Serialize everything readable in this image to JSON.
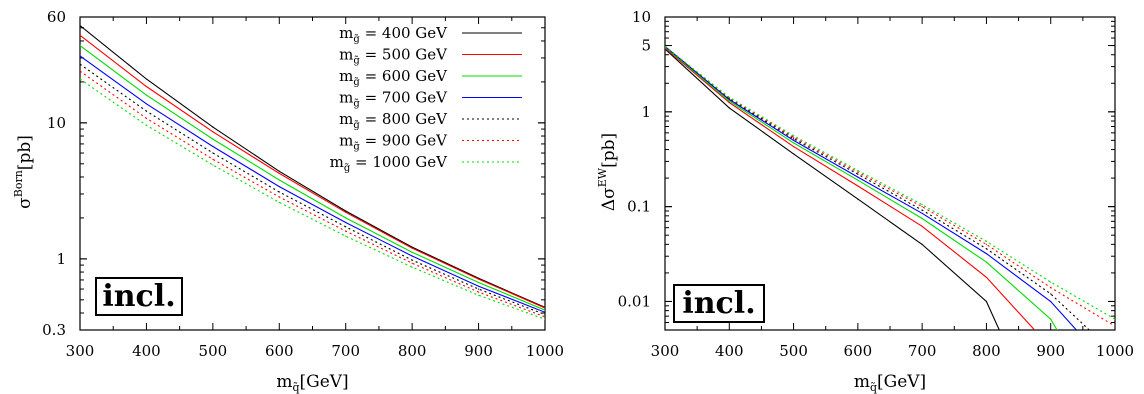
{
  "chart_data": [
    {
      "type": "line",
      "y_scale": "log",
      "xlabel": {
        "main": "m",
        "sub": "q̃",
        "unit": "[GeV]"
      },
      "ylabel": {
        "main": "σ",
        "sup": "Born",
        "unit": "[pb]"
      },
      "xlim": [
        300,
        1000
      ],
      "ylim": [
        0.3,
        60
      ],
      "x_ticks": [
        300,
        400,
        500,
        600,
        700,
        800,
        900,
        1000
      ],
      "y_ticks": [
        {
          "value": 0.3,
          "label": "0.3"
        },
        {
          "value": 1,
          "label": "1"
        },
        {
          "value": 10,
          "label": "10"
        },
        {
          "value": 60,
          "label": "60"
        }
      ],
      "annotation": "incl.",
      "legend_position": "top-right",
      "x": [
        300,
        400,
        500,
        600,
        700,
        800,
        900,
        1000
      ],
      "series": [
        {
          "name": "m_g̃ = 400 GeV",
          "color": "#000000",
          "dash": "solid",
          "values": [
            52,
            21,
            9.3,
            4.4,
            2.25,
            1.22,
            0.72,
            0.44
          ]
        },
        {
          "name": "m_g̃ = 500 GeV",
          "color": "#ff0000",
          "dash": "solid",
          "values": [
            44,
            18.5,
            8.6,
            4.25,
            2.2,
            1.2,
            0.71,
            0.435
          ]
        },
        {
          "name": "m_g̃ = 600 GeV",
          "color": "#00dd00",
          "dash": "solid",
          "values": [
            37,
            16,
            7.6,
            3.8,
            2.0,
            1.12,
            0.67,
            0.42
          ]
        },
        {
          "name": "m_g̃ = 700 GeV",
          "color": "#0000ff",
          "dash": "solid",
          "values": [
            31,
            13.8,
            6.7,
            3.4,
            1.85,
            1.05,
            0.63,
            0.405
          ]
        },
        {
          "name": "m_g̃ = 800 GeV",
          "color": "#000000",
          "dash": "dotted",
          "values": [
            27,
            12.2,
            6.0,
            3.1,
            1.72,
            0.98,
            0.6,
            0.39
          ]
        },
        {
          "name": "m_g̃ = 900 GeV",
          "color": "#ff0000",
          "dash": "dotted",
          "values": [
            24,
            10.8,
            5.4,
            2.85,
            1.6,
            0.93,
            0.57,
            0.375
          ]
        },
        {
          "name": "m_g̃ = 1000 GeV",
          "color": "#00dd00",
          "dash": "dotted",
          "values": [
            21,
            9.6,
            4.9,
            2.6,
            1.47,
            0.87,
            0.54,
            0.36
          ]
        }
      ]
    },
    {
      "type": "line",
      "y_scale": "log",
      "xlabel": {
        "main": "m",
        "sub": "q̃",
        "unit": "[GeV]"
      },
      "ylabel": {
        "main": "Δσ",
        "sup": "EW",
        "unit": "[pb]"
      },
      "xlim": [
        300,
        1000
      ],
      "ylim": [
        0.005,
        10
      ],
      "x_ticks": [
        300,
        400,
        500,
        600,
        700,
        800,
        900,
        1000
      ],
      "y_ticks": [
        {
          "value": 0.01,
          "label": "0.01"
        },
        {
          "value": 0.1,
          "label": "0.1"
        },
        {
          "value": 1,
          "label": "1"
        },
        {
          "value": 5,
          "label": "5"
        },
        {
          "value": 10,
          "label": "10"
        }
      ],
      "annotation": "incl.",
      "series": [
        {
          "name": "m_g̃ = 400 GeV",
          "color": "#000000",
          "dash": "solid",
          "x": [
            300,
            400,
            500,
            600,
            700,
            800,
            820
          ],
          "values": [
            4.6,
            1.1,
            0.36,
            0.12,
            0.04,
            0.01,
            0.005
          ]
        },
        {
          "name": "m_g̃ = 500 GeV",
          "color": "#ff0000",
          "dash": "solid",
          "x": [
            300,
            400,
            500,
            600,
            700,
            800,
            875
          ],
          "values": [
            4.7,
            1.25,
            0.43,
            0.165,
            0.062,
            0.018,
            0.005
          ]
        },
        {
          "name": "m_g̃ = 600 GeV",
          "color": "#00dd00",
          "dash": "solid",
          "x": [
            300,
            400,
            500,
            600,
            700,
            800,
            900,
            910
          ],
          "values": [
            4.8,
            1.3,
            0.47,
            0.19,
            0.075,
            0.026,
            0.0065,
            0.005
          ]
        },
        {
          "name": "m_g̃ = 700 GeV",
          "color": "#0000ff",
          "dash": "solid",
          "x": [
            300,
            400,
            500,
            600,
            700,
            800,
            900,
            940
          ],
          "values": [
            4.9,
            1.35,
            0.5,
            0.205,
            0.085,
            0.032,
            0.01,
            0.005
          ]
        },
        {
          "name": "m_g̃ = 800 GeV",
          "color": "#000000",
          "dash": "dotted",
          "x": [
            300,
            400,
            500,
            600,
            700,
            800,
            900,
            960
          ],
          "values": [
            4.9,
            1.38,
            0.52,
            0.22,
            0.092,
            0.036,
            0.012,
            0.005
          ]
        },
        {
          "name": "m_g̃ = 900 GeV",
          "color": "#ff0000",
          "dash": "dotted",
          "x": [
            300,
            400,
            500,
            600,
            700,
            800,
            900,
            1000
          ],
          "values": [
            4.9,
            1.4,
            0.54,
            0.23,
            0.1,
            0.04,
            0.014,
            0.0055
          ]
        },
        {
          "name": "m_g̃ = 1000 GeV",
          "color": "#00dd00",
          "dash": "dotted",
          "x": [
            300,
            400,
            500,
            600,
            700,
            800,
            900,
            1000
          ],
          "values": [
            4.9,
            1.42,
            0.56,
            0.24,
            0.105,
            0.043,
            0.016,
            0.0065
          ]
        }
      ]
    }
  ]
}
